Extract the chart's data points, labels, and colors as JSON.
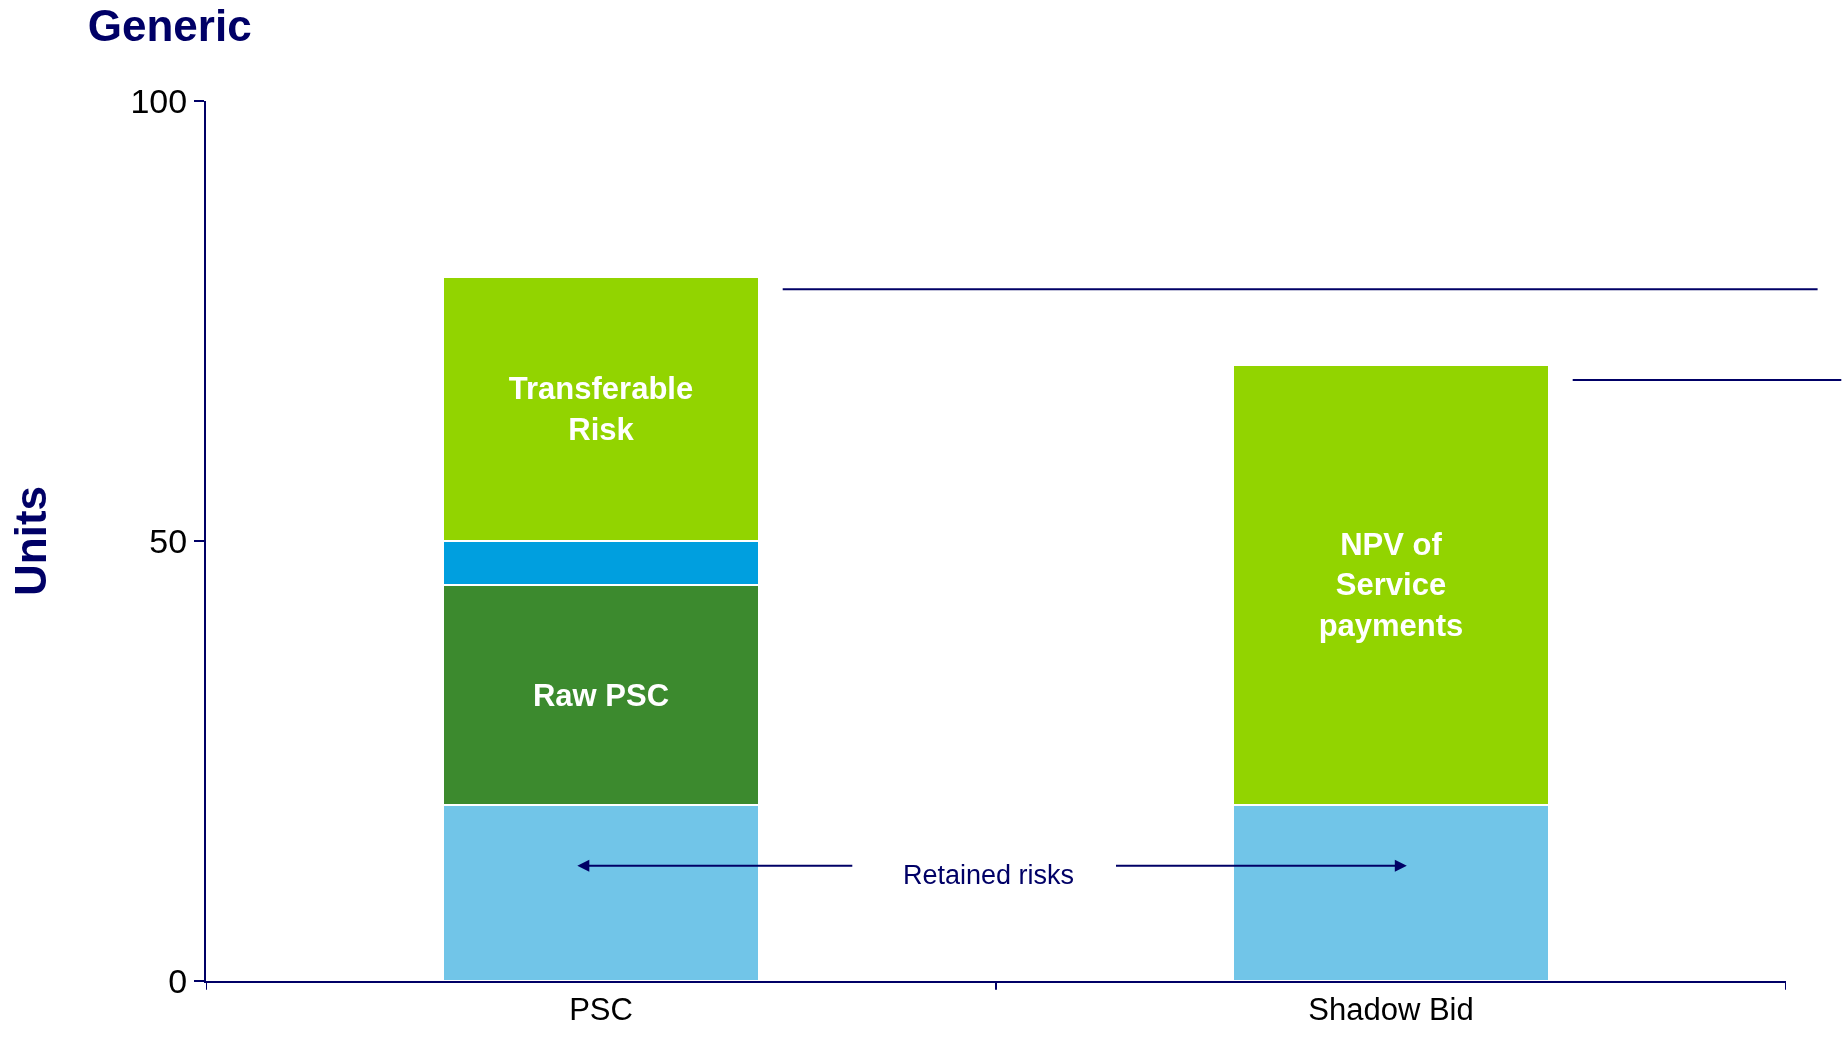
{
  "chart_data": {
    "type": "bar",
    "title": "Generic",
    "ylabel": "Units",
    "categories": [
      "PSC",
      "Shadow Bid"
    ],
    "stacked": true,
    "series": [
      {
        "color": "#71c5e8",
        "values": [
          20,
          20
        ]
      },
      {
        "name": "Raw PSC",
        "color": "#3c8a2e",
        "values": [
          25,
          null
        ]
      },
      {
        "color": "#009fdf",
        "values": [
          5,
          null
        ]
      },
      {
        "name": "Transferable Risk",
        "color": "#92d400",
        "values": [
          30,
          null
        ]
      },
      {
        "name": "NPV of Service payments",
        "color": "#92d400",
        "values": [
          null,
          50
        ]
      }
    ],
    "ylim": [
      0,
      100
    ],
    "yticks": [
      0,
      50,
      100
    ],
    "grid": false,
    "legend": false,
    "ref_lines": [
      {
        "axis": "y",
        "value": 78.6,
        "color": "#000066"
      },
      {
        "axis": "y",
        "value": 68.3,
        "color": "#000066"
      }
    ],
    "annotations": [
      "Retained risks"
    ]
  }
}
